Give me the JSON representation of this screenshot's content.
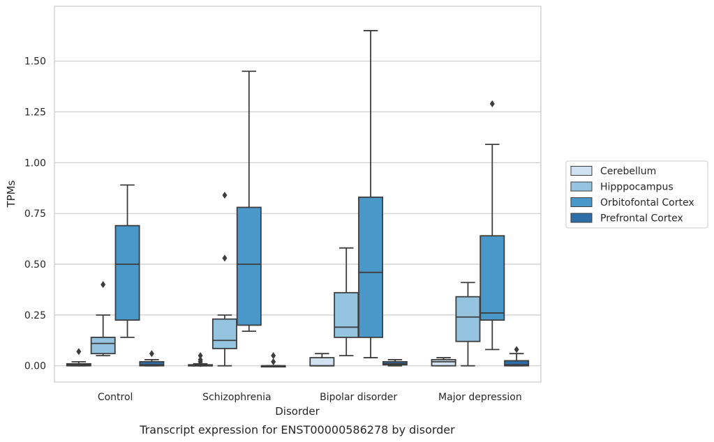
{
  "chart_data": {
    "type": "box",
    "xlabel": "Disorder",
    "ylabel": "TPMs",
    "caption": "Transcript expression for ENST00000586278 by disorder",
    "ylim": [
      -0.08,
      1.77
    ],
    "yticks": [
      "0.00",
      "0.25",
      "0.50",
      "0.75",
      "1.00",
      "1.25",
      "1.50"
    ],
    "ytick_values": [
      0,
      0.25,
      0.5,
      0.75,
      1.0,
      1.25,
      1.5
    ],
    "grid": true,
    "legend_position": "right",
    "categories": [
      "Control",
      "Schizophrenia",
      "Bipolar disorder",
      "Major depression"
    ],
    "series": [
      {
        "name": "Cerebellum",
        "color": "#d0e1f2",
        "boxes": [
          {
            "whislo": 0,
            "q1": 0,
            "med": 0.005,
            "q3": 0.01,
            "whishi": 0.02,
            "fliers": [
              0.07
            ]
          },
          {
            "whislo": 0,
            "q1": 0,
            "med": 0,
            "q3": 0.005,
            "whishi": 0.01,
            "fliers": [
              0.01,
              0.02,
              0.03,
              0.05
            ]
          },
          {
            "whislo": 0,
            "q1": 0,
            "med": 0,
            "q3": 0.04,
            "whishi": 0.06,
            "fliers": []
          },
          {
            "whislo": 0,
            "q1": 0,
            "med": 0.02,
            "q3": 0.03,
            "whishi": 0.04,
            "fliers": []
          }
        ]
      },
      {
        "name": "Hipppocampus",
        "color": "#94c4df",
        "boxes": [
          {
            "whislo": 0.05,
            "q1": 0.06,
            "med": 0.11,
            "q3": 0.14,
            "whishi": 0.25,
            "fliers": [
              0.4
            ]
          },
          {
            "whislo": 0,
            "q1": 0.085,
            "med": 0.125,
            "q3": 0.23,
            "whishi": 0.25,
            "fliers": [
              0.53,
              0.84
            ]
          },
          {
            "whislo": 0.05,
            "q1": 0.14,
            "med": 0.19,
            "q3": 0.36,
            "whishi": 0.58,
            "fliers": []
          },
          {
            "whislo": 0,
            "q1": 0.12,
            "med": 0.24,
            "q3": 0.34,
            "whishi": 0.41,
            "fliers": []
          }
        ]
      },
      {
        "name": "Orbitofontal Cortex",
        "color": "#4a98c9",
        "boxes": [
          {
            "whislo": 0.14,
            "q1": 0.225,
            "med": 0.5,
            "q3": 0.69,
            "whishi": 0.89,
            "fliers": []
          },
          {
            "whislo": 0.17,
            "q1": 0.2,
            "med": 0.5,
            "q3": 0.78,
            "whishi": 1.45,
            "fliers": []
          },
          {
            "whislo": 0.04,
            "q1": 0.14,
            "med": 0.46,
            "q3": 0.83,
            "whishi": 1.65,
            "fliers": []
          },
          {
            "whislo": 0.08,
            "q1": 0.225,
            "med": 0.26,
            "q3": 0.64,
            "whishi": 1.09,
            "fliers": [
              1.29
            ]
          }
        ]
      },
      {
        "name": "Prefrontal Cortex",
        "color": "#2e6ea8",
        "boxes": [
          {
            "whislo": 0,
            "q1": 0,
            "med": 0.005,
            "q3": 0.02,
            "whishi": 0.03,
            "fliers": [
              0.06
            ]
          },
          {
            "whislo": 0,
            "q1": 0,
            "med": 0,
            "q3": 0,
            "whishi": 0,
            "fliers": [
              0.02,
              0.05
            ]
          },
          {
            "whislo": 0,
            "q1": 0.005,
            "med": 0.01,
            "q3": 0.02,
            "whishi": 0.03,
            "fliers": []
          },
          {
            "whislo": 0,
            "q1": 0,
            "med": 0.005,
            "q3": 0.025,
            "whishi": 0.06,
            "fliers": [
              0.08
            ]
          }
        ]
      }
    ]
  }
}
